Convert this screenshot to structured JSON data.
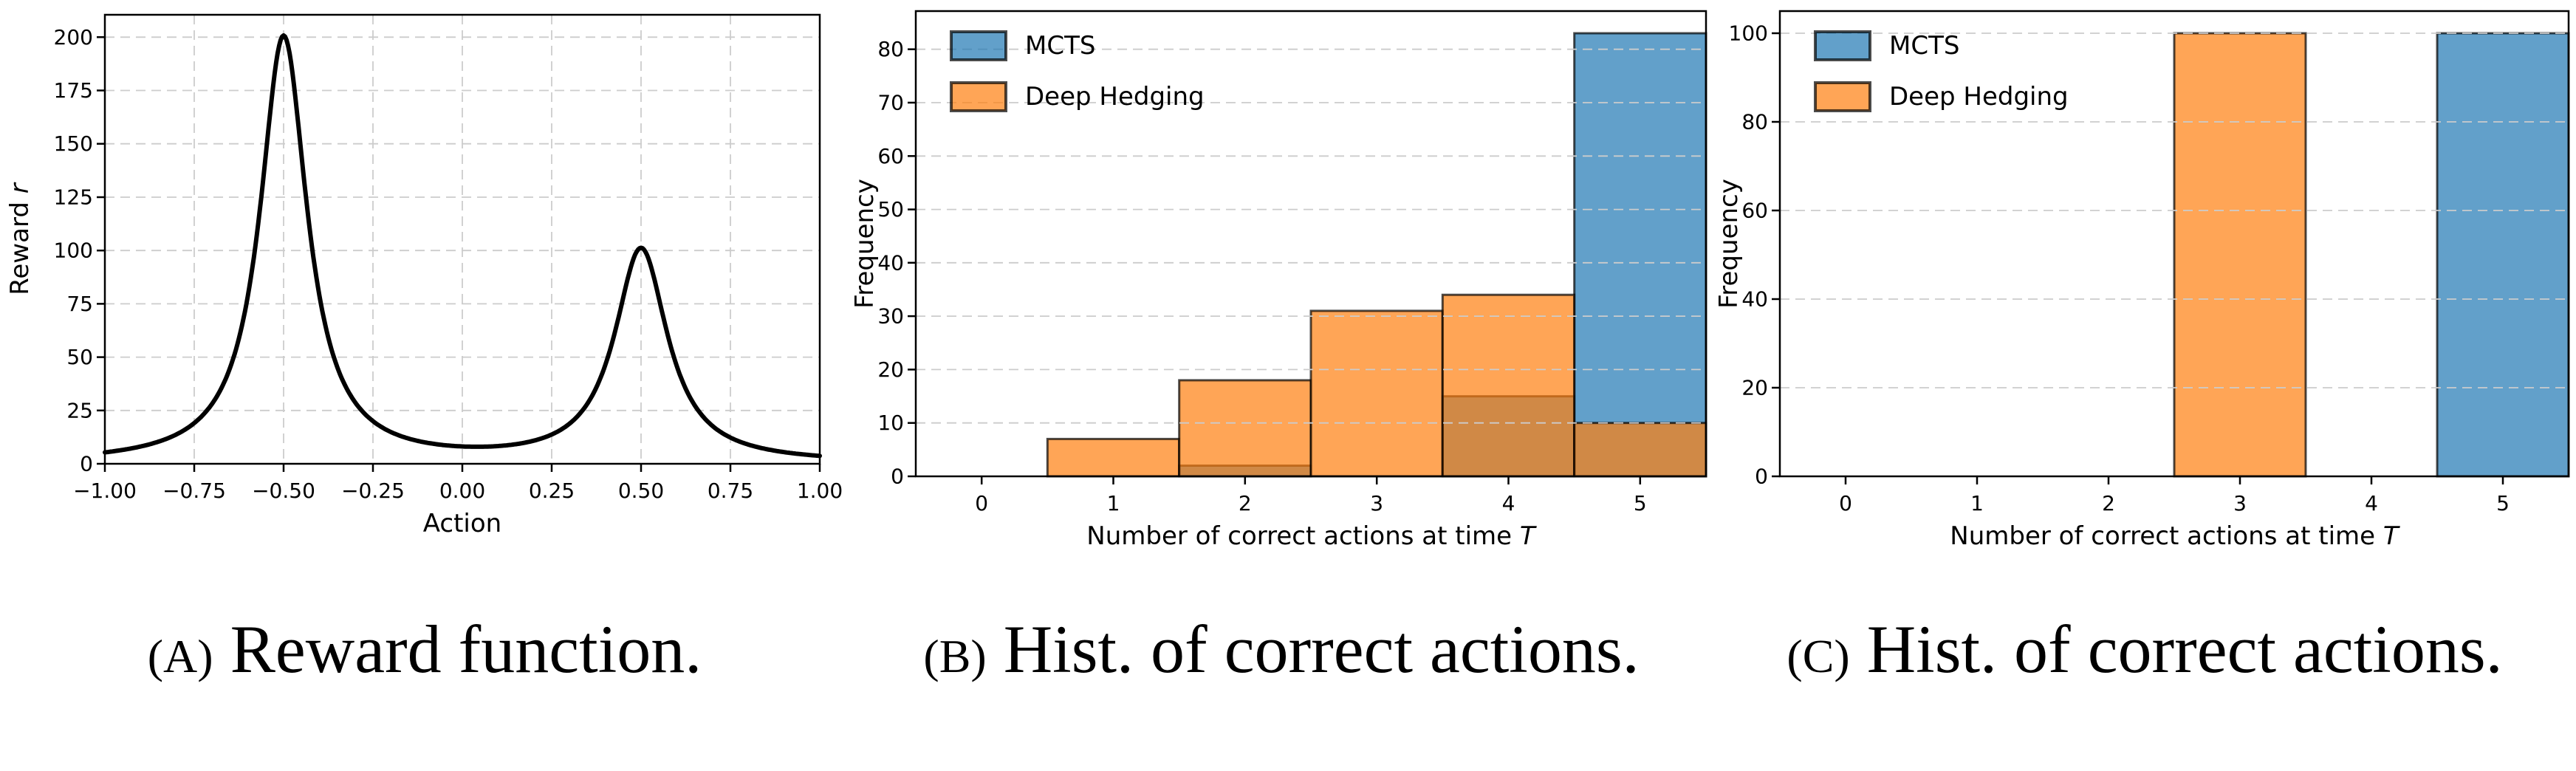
{
  "figure": {
    "background_color": "#ffffff",
    "captions": [
      {
        "label": "(A)",
        "text": "Reward function."
      },
      {
        "label": "(B)",
        "text": "Hist. of correct actions."
      },
      {
        "label": "(C)",
        "text": "Hist. of correct actions."
      }
    ]
  },
  "palette": {
    "mcts_blue": "#1f77b4",
    "deep_hedging_orange": "#ff7f0e",
    "fill_alpha": 0.7,
    "bar_edge_color": "#000000",
    "bar_edge_alpha": 0.7,
    "grid_color": "#cccccc",
    "line_color": "#000000",
    "text_color": "#000000"
  },
  "chart_data": [
    {
      "id": "reward-function",
      "type": "line",
      "xlabel": "Action",
      "ylabel_text": "Reward ",
      "ylabel_var": "r",
      "xlim": [
        -1.0,
        1.0
      ],
      "ylim": [
        0,
        210.5
      ],
      "x_ticks": [
        -1.0,
        -0.75,
        -0.5,
        -0.25,
        0.0,
        0.25,
        0.5,
        0.75,
        1.0
      ],
      "x_tick_labels": [
        "−1.00",
        "−0.75",
        "−0.50",
        "−0.25",
        "0.00",
        "0.25",
        "0.50",
        "0.75",
        "1.00"
      ],
      "y_ticks": [
        0,
        25,
        50,
        75,
        100,
        125,
        150,
        175,
        200
      ],
      "y_tick_labels": [
        "0",
        "25",
        "50",
        "75",
        "100",
        "125",
        "150",
        "175",
        "200"
      ],
      "grid": "both",
      "line_width": 6,
      "curve_model": {
        "form": "sum_of_lorentzians",
        "formula": "r(a) = sum( amplitude * hwhm^2 / ((a - center)^2 + hwhm^2) )",
        "components": [
          {
            "center": -0.5,
            "amplitude": 200,
            "hwhm": 0.08
          },
          {
            "center": 0.5,
            "amplitude": 100,
            "hwhm": 0.09
          }
        ],
        "samples": 481
      },
      "peaks": [
        {
          "x": -0.5,
          "y": 201
        },
        {
          "x": 0.5,
          "y": 101
        }
      ]
    },
    {
      "id": "hist-correct-actions-b",
      "type": "bar",
      "categories": [
        0,
        1,
        2,
        3,
        4,
        5
      ],
      "series": [
        {
          "name": "MCTS",
          "color": "#1f77b4",
          "values": [
            0,
            0,
            2,
            0,
            15,
            83
          ]
        },
        {
          "name": "Deep Hedging",
          "color": "#ff7f0e",
          "values": [
            0,
            7,
            18,
            31,
            34,
            10
          ]
        }
      ],
      "bar_width": 1.0,
      "xlabel_text": "Number of correct actions at time ",
      "xlabel_var": "T",
      "ylabel": "Frequency",
      "xlim": [
        -0.5,
        5.5
      ],
      "ylim": [
        0,
        87.15
      ],
      "x_ticks": [
        0,
        1,
        2,
        3,
        4,
        5
      ],
      "x_tick_labels": [
        "0",
        "1",
        "2",
        "3",
        "4",
        "5"
      ],
      "y_ticks": [
        0,
        10,
        20,
        30,
        40,
        50,
        60,
        70,
        80
      ],
      "y_tick_labels": [
        "0",
        "10",
        "20",
        "30",
        "40",
        "50",
        "60",
        "70",
        "80"
      ],
      "grid": "y",
      "legend": {
        "position": "upper left",
        "entries": [
          "MCTS",
          "Deep Hedging"
        ]
      }
    },
    {
      "id": "hist-correct-actions-c",
      "type": "bar",
      "categories": [
        0,
        1,
        2,
        3,
        4,
        5
      ],
      "series": [
        {
          "name": "MCTS",
          "color": "#1f77b4",
          "values": [
            0,
            0,
            0,
            0,
            0,
            100
          ]
        },
        {
          "name": "Deep Hedging",
          "color": "#ff7f0e",
          "values": [
            0,
            0,
            0,
            100,
            0,
            0
          ]
        }
      ],
      "bar_width": 1.0,
      "xlabel_text": "Number of correct actions at time ",
      "xlabel_var": "T",
      "ylabel": "Frequency",
      "xlim": [
        -0.5,
        5.5
      ],
      "ylim": [
        0,
        105
      ],
      "x_ticks": [
        0,
        1,
        2,
        3,
        4,
        5
      ],
      "x_tick_labels": [
        "0",
        "1",
        "2",
        "3",
        "4",
        "5"
      ],
      "y_ticks": [
        0,
        20,
        40,
        60,
        80,
        100
      ],
      "y_tick_labels": [
        "0",
        "20",
        "40",
        "60",
        "80",
        "100"
      ],
      "grid": "y",
      "legend": {
        "position": "upper left",
        "entries": [
          "MCTS",
          "Deep Hedging"
        ]
      }
    }
  ]
}
